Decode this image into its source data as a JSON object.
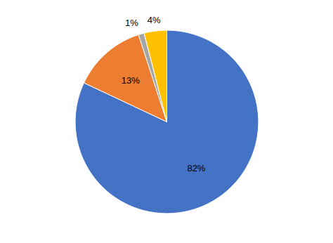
{
  "chart_data": {
    "type": "pie",
    "values": [
      82,
      13,
      1,
      4
    ],
    "value_labels": [
      "82%",
      "13%",
      "1%",
      "4%"
    ],
    "colors": [
      "#4472C4",
      "#ED7D31",
      "#A5A5A5",
      "#FFC000"
    ],
    "data_labels": true
  }
}
